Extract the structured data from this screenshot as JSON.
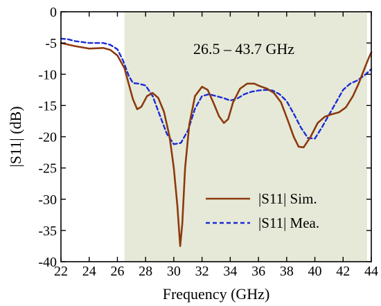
{
  "chart_data": {
    "type": "line",
    "title": "",
    "xlabel": "Frequency (GHz)",
    "ylabel": "|S11| (dB)",
    "xlim": [
      22,
      44
    ],
    "ylim": [
      -40,
      0
    ],
    "x_ticks": [
      22,
      24,
      26,
      28,
      30,
      32,
      34,
      36,
      38,
      40,
      42,
      44
    ],
    "y_ticks": [
      0,
      -5,
      -10,
      -15,
      -20,
      -25,
      -30,
      -35,
      -40
    ],
    "grid": false,
    "legend_position": "lower-right",
    "shaded_band": {
      "x_start": 26.5,
      "x_end": 43.7,
      "color": "#e6e9d7"
    },
    "annotation": "26.5 – 43.7 GHz",
    "series": [
      {
        "name": "|S11| Sim.",
        "color": "#8b3a0f",
        "style": "solid",
        "x": [
          22,
          23,
          24,
          25,
          25.5,
          26,
          26.5,
          26.8,
          27.1,
          27.4,
          27.7,
          28.1,
          28.5,
          28.9,
          29.3,
          29.7,
          30.0,
          30.25,
          30.45,
          30.6,
          30.8,
          31.1,
          31.5,
          32.0,
          32.4,
          32.8,
          33.2,
          33.55,
          33.85,
          34.2,
          34.7,
          35.2,
          35.7,
          36.1,
          36.6,
          37.1,
          37.6,
          38.1,
          38.5,
          38.85,
          39.2,
          39.7,
          40.2,
          40.7,
          41.2,
          41.7,
          42.2,
          42.7,
          43.1,
          43.5,
          43.8,
          44.0
        ],
        "y": [
          -5.0,
          -5.5,
          -5.9,
          -5.8,
          -6.1,
          -7.0,
          -9.0,
          -11.5,
          -14.0,
          -15.6,
          -15.2,
          -13.5,
          -13.0,
          -13.8,
          -16.0,
          -20.0,
          -25.0,
          -31.0,
          -37.5,
          -34.0,
          -25.0,
          -18.0,
          -13.5,
          -12.0,
          -12.5,
          -14.5,
          -16.7,
          -17.8,
          -17.2,
          -14.5,
          -12.3,
          -11.5,
          -11.5,
          -11.9,
          -12.3,
          -13.0,
          -14.5,
          -17.5,
          -20.0,
          -21.6,
          -21.7,
          -20.0,
          -17.8,
          -16.8,
          -16.4,
          -16.1,
          -15.3,
          -13.5,
          -11.5,
          -9.2,
          -7.5,
          -6.5
        ]
      },
      {
        "name": "|S11| Mea.",
        "color": "#1a2bd6",
        "style": "dashed",
        "x": [
          22,
          22.5,
          23,
          24,
          25,
          25.5,
          26,
          26.4,
          26.8,
          27.1,
          27.5,
          28.0,
          28.5,
          29.0,
          29.5,
          30.0,
          30.5,
          31.0,
          31.5,
          32.0,
          32.5,
          33.0,
          33.5,
          34.0,
          34.5,
          35.0,
          35.5,
          36.0,
          36.5,
          37.0,
          37.5,
          38.0,
          38.5,
          39.0,
          39.5,
          40.0,
          40.5,
          41.0,
          41.5,
          42.0,
          42.5,
          43.0,
          43.5,
          44.0
        ],
        "y": [
          -4.3,
          -4.4,
          -4.7,
          -5.0,
          -5.0,
          -5.3,
          -6.0,
          -7.8,
          -10.2,
          -11.4,
          -11.5,
          -11.8,
          -13.5,
          -16.5,
          -19.5,
          -21.2,
          -21.0,
          -19.0,
          -15.5,
          -13.5,
          -13.2,
          -13.5,
          -13.8,
          -14.2,
          -13.9,
          -13.2,
          -12.8,
          -12.6,
          -12.5,
          -12.6,
          -13.2,
          -14.3,
          -16.3,
          -18.5,
          -20.2,
          -20.3,
          -18.5,
          -16.5,
          -14.5,
          -12.5,
          -11.5,
          -11.0,
          -10.2,
          -9.2
        ]
      }
    ]
  }
}
